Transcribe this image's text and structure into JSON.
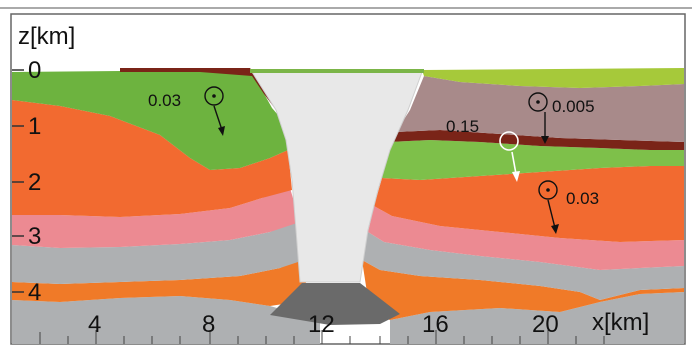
{
  "axes": {
    "z_label": "z[km]",
    "x_label": "x[km]",
    "z_ticks": [
      "0",
      "1",
      "2",
      "3",
      "4"
    ],
    "x_ticks": [
      "4",
      "8",
      "12",
      "16",
      "20"
    ]
  },
  "annotations": [
    {
      "text": "0.03",
      "symbol": "circle-dot"
    },
    {
      "text": "0.005",
      "symbol": "circle-dot"
    },
    {
      "text": "0.15",
      "symbol": "open-circle"
    },
    {
      "text": "0.03",
      "symbol": "circle-dot"
    }
  ],
  "colors": {
    "green": "#6db33f",
    "light_green": "#a6c93a",
    "mauve": "#a88a8a",
    "dark_red": "#7a2418",
    "orange": "#f26a30",
    "pink": "#ec8a92",
    "gray": "#aeb0b2",
    "dark_gray": "#6a6a6a",
    "orange_deep": "#f07a28",
    "salt_body": "#e8e8e8"
  }
}
